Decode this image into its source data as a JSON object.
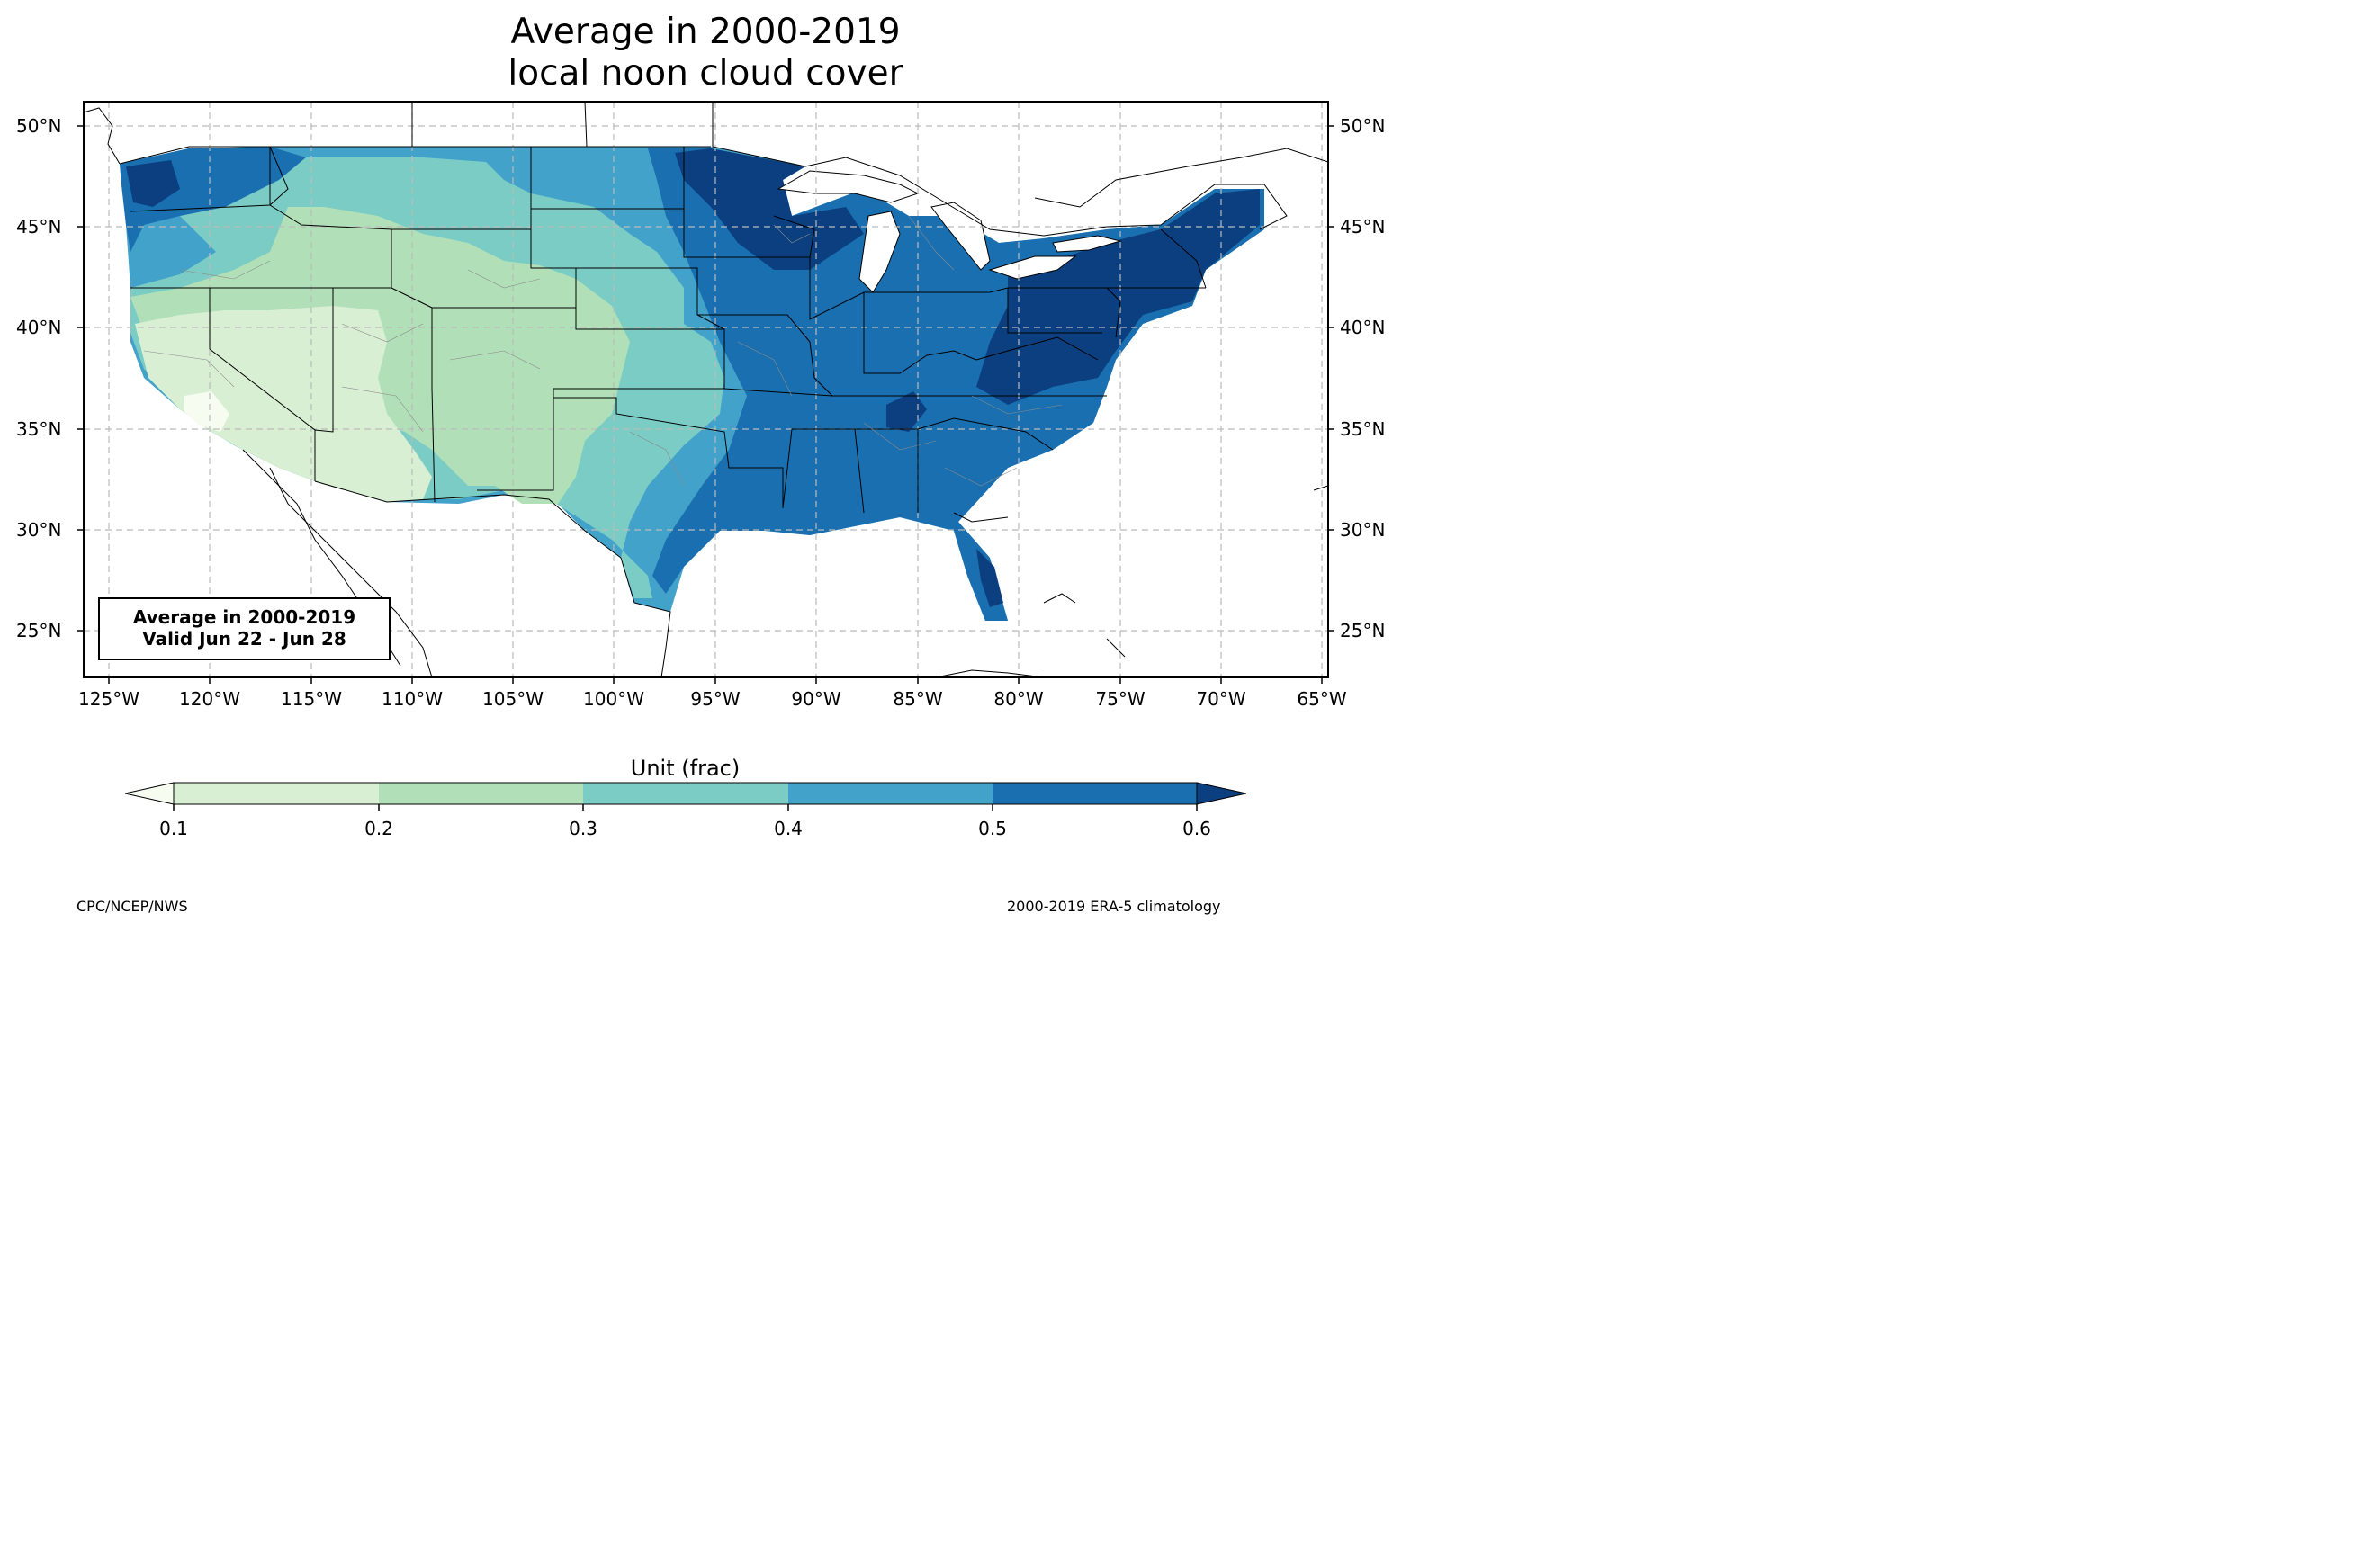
{
  "title_line1": "Average in 2000-2019",
  "title_line2": "local noon cloud cover",
  "lat_labels_left": [
    "50°N",
    "45°N",
    "40°N",
    "35°N",
    "30°N",
    "25°N"
  ],
  "lat_labels_right": [
    "50°N",
    "45°N",
    "40°N",
    "35°N",
    "30°N",
    "25°N"
  ],
  "lon_labels": [
    "125°W",
    "120°W",
    "115°W",
    "110°W",
    "105°W",
    "100°W",
    "95°W",
    "90°W",
    "85°W",
    "80°W",
    "75°W",
    "70°W",
    "65°W"
  ],
  "info_box": {
    "line1": "Average in 2000-2019",
    "line2": "Valid Jun 22 - Jun 28"
  },
  "colorbar": {
    "label": "Unit (frac)",
    "ticks": [
      "0.1",
      "0.2",
      "0.3",
      "0.4",
      "0.5",
      "0.6"
    ],
    "colors": [
      "#f7fcf0",
      "#d8efd3",
      "#b1e0b8",
      "#7bccc4",
      "#43a2ca",
      "#1a6fb0",
      "#0b3f80"
    ]
  },
  "footer_left": "CPC/NCEP/NWS",
  "footer_right": "2000-2019 ERA-5 climatology"
}
